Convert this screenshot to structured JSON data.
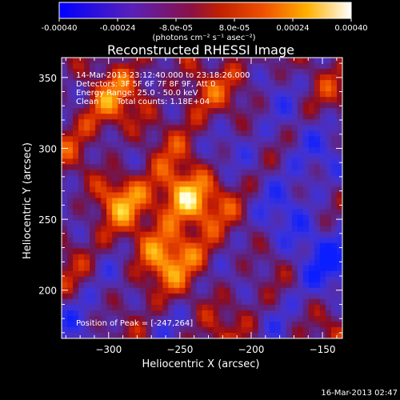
{
  "colorbar": {
    "tick_labels": [
      "-0.00040",
      "-0.00024",
      "-8.0e-05",
      "8.0e-05",
      "0.00024",
      "0.00040"
    ],
    "tick_values": [
      -0.0004,
      -0.00024,
      -8e-05,
      8e-05,
      0.00024,
      0.0004
    ],
    "range": [
      -0.0004,
      0.0004
    ],
    "units_label": "(photons cm⁻² s⁻¹ asec⁻²)",
    "colors": [
      "#0000ff",
      "#5020b0",
      "#a01030",
      "#e03000",
      "#ff8000",
      "#ffd000",
      "#ffffff"
    ]
  },
  "chart_data": {
    "type": "heatmap",
    "title": "Reconstructed RHESSI Image",
    "xlabel": "Heliocentric X (arcsec)",
    "ylabel": "Heliocentric Y (arcsec)",
    "xlim": [
      -333,
      -136
    ],
    "ylim": [
      166,
      364
    ],
    "x_ticks": [
      -300,
      -250,
      -200,
      -150
    ],
    "x_tick_labels": [
      "−300",
      "−250",
      "−200",
      "−150"
    ],
    "y_ticks": [
      200,
      250,
      300,
      350
    ],
    "y_tick_labels": [
      "200",
      "250",
      "300",
      "350"
    ],
    "peak": [
      -247,
      264
    ],
    "annotations": {
      "time": "14-Mar-2013 23:12:40.000 to 23:18:26.000",
      "detectors": "Detectors: 3F 5F 6F 7F 8F 9F, Att 0",
      "energy": "Energy Range: 25.0 - 50.0 keV",
      "clean": "Clean",
      "counts": "Total counts: 1.18E+04",
      "peak_text": "Position of Peak = [-247,264]"
    }
  },
  "footer": {
    "date": "16-Mar-2013 02:47"
  }
}
